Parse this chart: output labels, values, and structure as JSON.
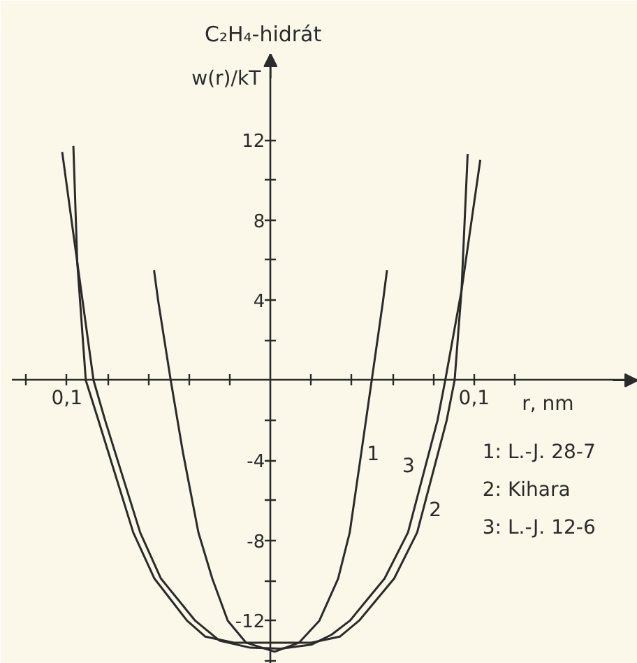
{
  "chart_data": {
    "type": "line",
    "title": "C₂H₄-hidrát",
    "xlabel": "r, nm",
    "ylabel": "w(r)/kT",
    "xlim": [
      -0.127,
      0.1803
    ],
    "ylim": [
      -14.15,
      16.3
    ],
    "xticks": [
      {
        "value": -0.12,
        "label": null
      },
      {
        "value": -0.1,
        "label": "0,1"
      },
      {
        "value": -0.08,
        "label": null
      },
      {
        "value": -0.06,
        "label": null
      },
      {
        "value": -0.04,
        "label": null
      },
      {
        "value": -0.02,
        "label": null
      },
      {
        "value": 0.02,
        "label": null
      },
      {
        "value": 0.04,
        "label": null
      },
      {
        "value": 0.06,
        "label": null
      },
      {
        "value": 0.08,
        "label": null
      },
      {
        "value": 0.1,
        "label": "0,1"
      },
      {
        "value": 0.12,
        "label": null
      }
    ],
    "yticks": [
      {
        "value": -14,
        "label": null
      },
      -12,
      {
        "value": -10,
        "label": null
      },
      -8,
      {
        "value": -6,
        "label": null
      },
      -4,
      {
        "value": -2,
        "label": null
      },
      {
        "value": 2,
        "label": null
      },
      4,
      {
        "value": 6,
        "label": null
      },
      8,
      {
        "value": 10,
        "label": null
      },
      12
    ],
    "series": [
      {
        "name": "1",
        "color": "#2b2b2b",
        "x": [
          -0.0572,
          -0.0552,
          -0.049,
          -0.043,
          -0.0354,
          -0.0286,
          -0.021,
          -0.012,
          0.002,
          0.014,
          0.024,
          0.0332,
          0.0389,
          0.0446,
          0.0497,
          0.0553,
          0.0572
        ],
        "values": [
          5.5,
          4,
          0,
          -3.6,
          -7.6,
          -9.9,
          -12,
          -13.1,
          -13.55,
          -13.1,
          -12,
          -9.9,
          -7.6,
          -3.6,
          0,
          4,
          5.5
        ]
      },
      {
        "name": "2",
        "color": "#2b2b2b",
        "x": [
          -0.0968,
          -0.0949,
          -0.0907,
          -0.0845,
          -0.0674,
          -0.057,
          -0.041,
          -0.032,
          -0.018,
          0.02,
          0.034,
          0.0435,
          0.0607,
          0.072,
          0.0865,
          0.0904,
          0.0938,
          0.0968
        ],
        "values": [
          11.7,
          5.9,
          0,
          -2,
          -7.6,
          -9.9,
          -12,
          -12.8,
          -13.1,
          -13.1,
          -12.8,
          -12,
          -9.9,
          -7.6,
          -2,
          0,
          4.5,
          11.3
        ]
      },
      {
        "name": "3",
        "color": "#2b2b2b",
        "x": [
          -0.1023,
          -0.0949,
          -0.0869,
          -0.0812,
          -0.064,
          -0.0538,
          -0.037,
          -0.025,
          -0.01,
          0.005,
          0.02,
          0.03,
          0.039,
          0.056,
          0.0675,
          0.082,
          0.0858,
          0.0938,
          0.103
        ],
        "values": [
          11.4,
          5.9,
          0,
          -2,
          -7.6,
          -9.9,
          -12,
          -13,
          -13.35,
          -13.4,
          -13.2,
          -12.7,
          -12,
          -9.9,
          -7.6,
          -2,
          0,
          4.5,
          11
        ]
      }
    ],
    "annotations": [
      "1: L.-J. 28-7",
      "2: Kihara",
      "3: L.-J. 12-6"
    ]
  }
}
